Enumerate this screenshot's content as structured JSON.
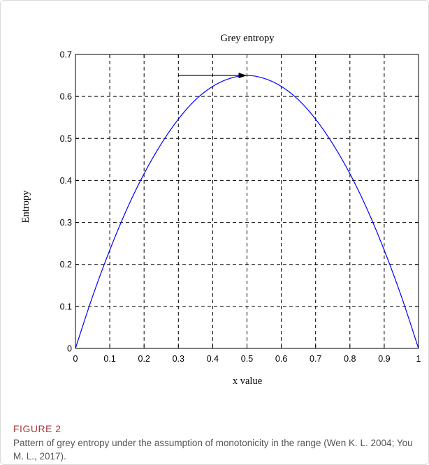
{
  "figure": {
    "label": "FIGURE 2",
    "caption": "Pattern of grey entropy under the assumption of monotonicity in the range (Wen K. L. 2004; You M. L., 2017)."
  },
  "chart_data": {
    "type": "line",
    "title": "Grey entropy",
    "xlabel": "x value",
    "ylabel": "Entropy",
    "xlim": [
      0,
      1
    ],
    "ylim": [
      0,
      0.7
    ],
    "x_ticks": [
      "0",
      "0.1",
      "0.2",
      "0.3",
      "0.4",
      "0.5",
      "0.6",
      "0.7",
      "0.8",
      "0.9",
      "1"
    ],
    "y_ticks": [
      "0",
      "0.1",
      "0.2",
      "0.3",
      "0.4",
      "0.5",
      "0.6",
      "0.7"
    ],
    "grid": true,
    "grid_style": "dashed",
    "series": [
      {
        "color": "#0000ff",
        "x": [
          0,
          0.05,
          0.1,
          0.15,
          0.2,
          0.25,
          0.3,
          0.35,
          0.4,
          0.45,
          0.5,
          0.55,
          0.6,
          0.65,
          0.7,
          0.75,
          0.8,
          0.85,
          0.9,
          0.95,
          1
        ],
        "y": [
          0,
          0.124,
          0.234,
          0.332,
          0.416,
          0.487,
          0.546,
          0.592,
          0.624,
          0.643,
          0.65,
          0.643,
          0.624,
          0.592,
          0.546,
          0.487,
          0.416,
          0.332,
          0.234,
          0.124,
          0
        ]
      }
    ],
    "annotations": [
      {
        "type": "arrow",
        "from": [
          0.3,
          0.65
        ],
        "to": [
          0.5,
          0.65
        ],
        "color": "#000000"
      }
    ]
  }
}
